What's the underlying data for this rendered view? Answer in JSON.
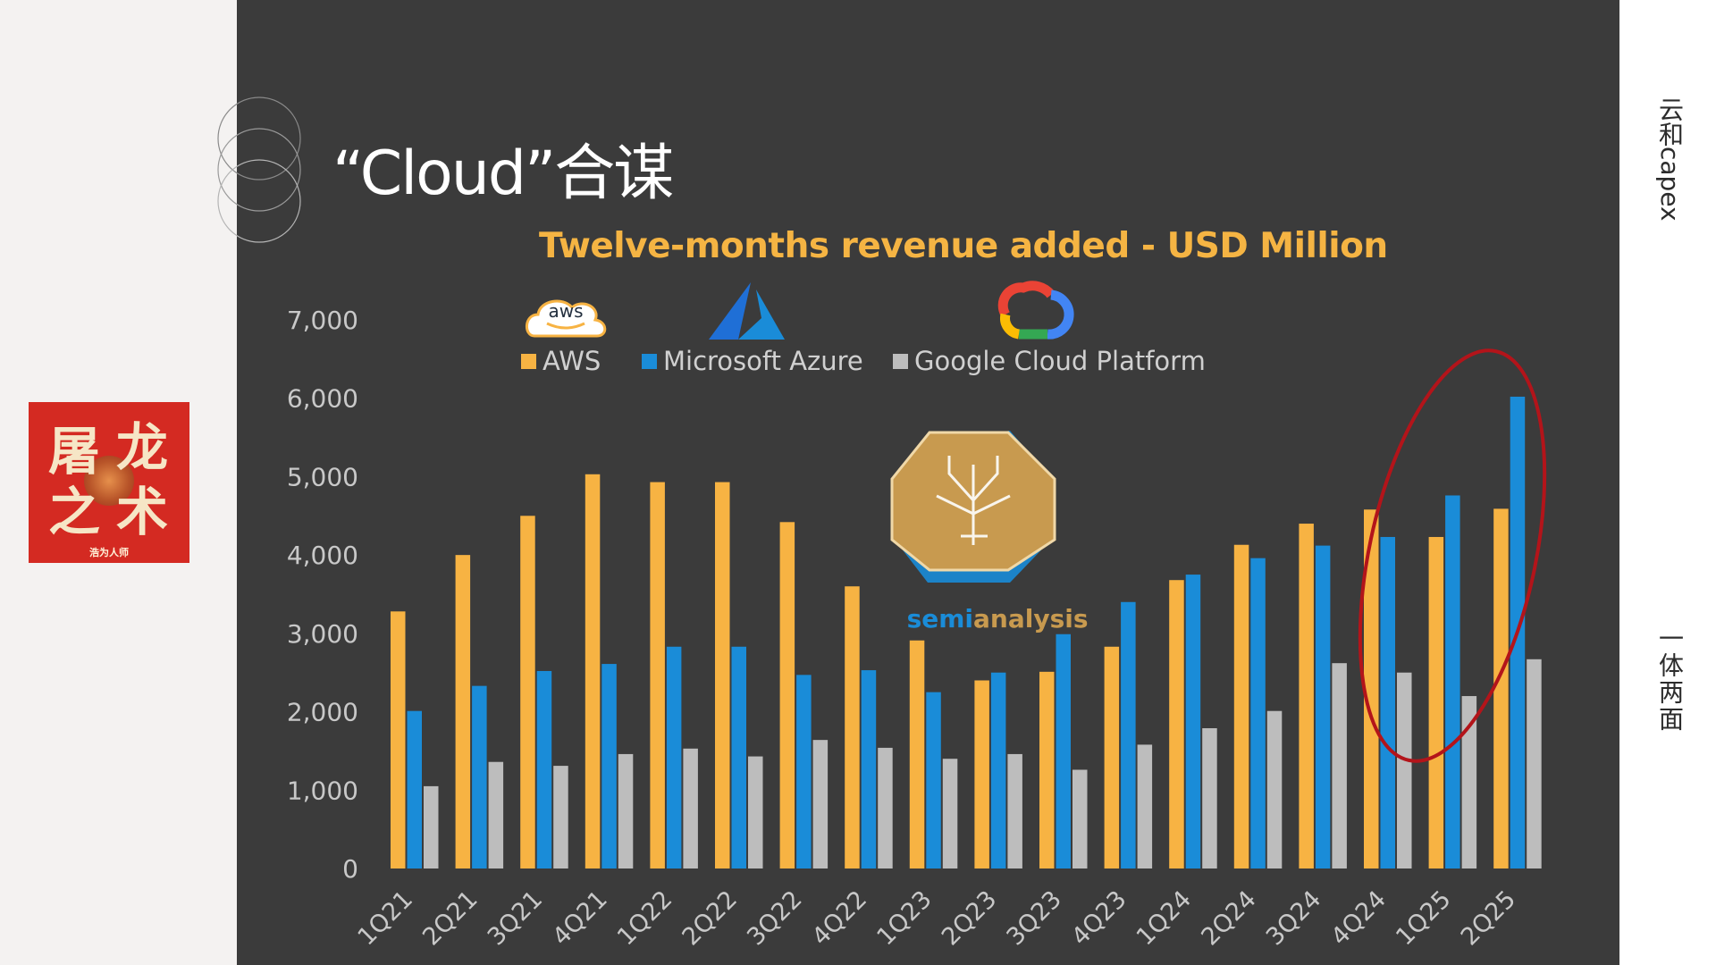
{
  "slide": {
    "title": "“Cloud”合谋",
    "side_label_top": "云和capex",
    "side_label_bottom": "一体两面"
  },
  "stamp": {
    "glyph_1": "屠",
    "glyph_2": "龙",
    "glyph_3": "之",
    "glyph_4": "术",
    "caption": "浩为人师"
  },
  "logos": {
    "aws_text": "aws",
    "watermark_text_1": "semi",
    "watermark_text_2": "analysis"
  },
  "colors": {
    "aws": "#f7b343",
    "azure": "#1a8cd8",
    "gcp": "#bdbdbd",
    "title": "#f5b443",
    "panel": "#3b3b3b",
    "highlight_ellipse": "#b3141a"
  },
  "chart_data": {
    "type": "bar",
    "title": "Twelve-months revenue added - USD Million",
    "xlabel": "",
    "ylabel": "",
    "ylim": [
      0,
      7000
    ],
    "yticks": [
      0,
      1000,
      2000,
      3000,
      4000,
      5000,
      6000,
      7000
    ],
    "ytick_labels": [
      "0",
      "1,000",
      "2,000",
      "3,000",
      "4,000",
      "5,000",
      "6,000",
      "7,000"
    ],
    "grid": false,
    "legend_position": "top-left",
    "categories": [
      "1Q21",
      "2Q21",
      "3Q21",
      "4Q21",
      "1Q22",
      "2Q22",
      "3Q22",
      "4Q22",
      "1Q23",
      "2Q23",
      "3Q23",
      "4Q23",
      "1Q24",
      "2Q24",
      "3Q24",
      "4Q24",
      "1Q25",
      "2Q25"
    ],
    "series": [
      {
        "name": "AWS",
        "values": [
          3280,
          4000,
          4500,
          5030,
          4930,
          4930,
          4420,
          3600,
          2910,
          2400,
          2510,
          2830,
          3680,
          4130,
          4400,
          4580,
          4230,
          4590
        ]
      },
      {
        "name": "Microsoft Azure",
        "values": [
          2010,
          2330,
          2520,
          2610,
          2830,
          2830,
          2470,
          2530,
          2250,
          2500,
          2990,
          3400,
          3750,
          3960,
          4120,
          4230,
          4760,
          6020
        ]
      },
      {
        "name": "Google Cloud Platform",
        "values": [
          1050,
          1360,
          1310,
          1460,
          1530,
          1430,
          1640,
          1540,
          1400,
          1460,
          1260,
          1580,
          1790,
          2010,
          2620,
          2500,
          2200,
          2670
        ]
      }
    ],
    "annotations": [
      {
        "type": "ellipse",
        "covers_categories": [
          "4Q24",
          "1Q25",
          "2Q25"
        ]
      }
    ]
  }
}
